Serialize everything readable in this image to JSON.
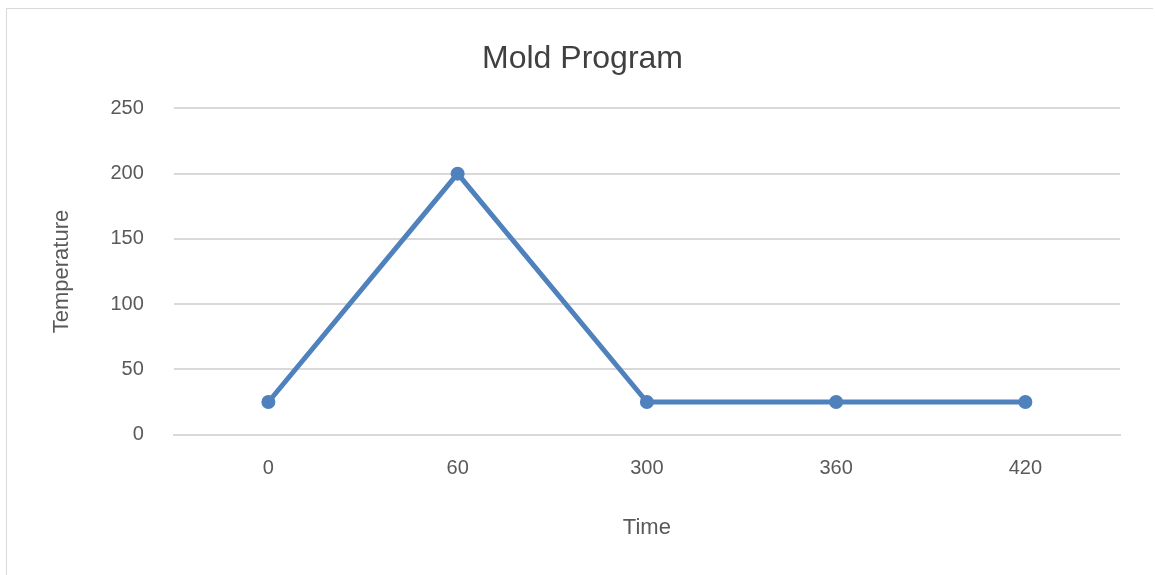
{
  "chart_data": {
    "type": "line",
    "title": "Mold Program",
    "xlabel": "Time",
    "ylabel": "Temperature",
    "categories": [
      "0",
      "60",
      "300",
      "360",
      "420"
    ],
    "series": [
      {
        "color": "#4f81bd",
        "values": [
          25,
          200,
          25,
          25,
          25
        ]
      }
    ],
    "ylim": [
      0,
      250
    ],
    "yticks": [
      0,
      50,
      100,
      150,
      200,
      250
    ],
    "grid": "y",
    "legend": false,
    "marker": "circle",
    "line_style": "solid"
  }
}
